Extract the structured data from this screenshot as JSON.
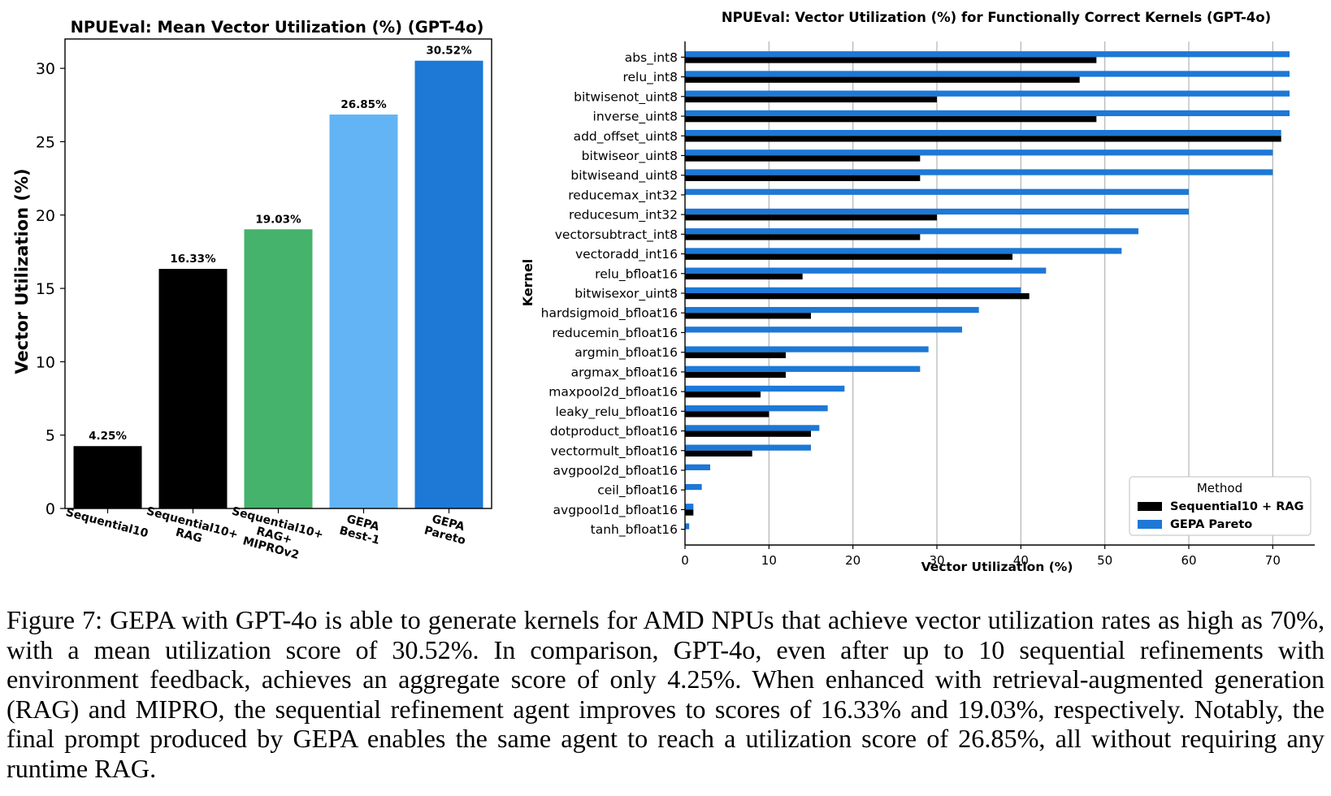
{
  "chart_data": [
    {
      "type": "bar",
      "title": "NPUEval: Mean Vector Utilization (%) (GPT-4o)",
      "xlabel": "",
      "ylabel": "Vector Utilization (%)",
      "ylim": [
        0,
        32
      ],
      "yticks": [
        0,
        5,
        10,
        15,
        20,
        25,
        30
      ],
      "grid": false,
      "categories": [
        [
          "Sequential10"
        ],
        [
          "Sequential10+",
          "RAG"
        ],
        [
          "Sequential10+",
          "RAG+",
          "MIPROv2"
        ],
        [
          "GEPA",
          "Best-1"
        ],
        [
          "GEPA",
          "Pareto"
        ]
      ],
      "values": [
        4.25,
        16.33,
        19.03,
        26.85,
        30.52
      ],
      "value_labels": [
        "4.25%",
        "16.33%",
        "19.03%",
        "26.85%",
        "30.52%"
      ],
      "colors": [
        "#000000",
        "#000000",
        "#45b36b",
        "#63b4f5",
        "#1d78d6"
      ]
    },
    {
      "type": "bar",
      "orientation": "horizontal",
      "title": "NPUEval: Vector Utilization (%) for Functionally Correct Kernels (GPT-4o)",
      "xlabel": "Vector Utilization (%)",
      "ylabel": "Kernel",
      "xlim": [
        0,
        75
      ],
      "xticks": [
        0,
        10,
        20,
        30,
        40,
        50,
        60,
        70
      ],
      "grid": "vertical",
      "legend": {
        "title": "Method",
        "placement": "lower-right"
      },
      "categories": [
        "abs_int8",
        "relu_int8",
        "bitwisenot_uint8",
        "inverse_uint8",
        "add_offset_uint8",
        "bitwiseor_uint8",
        "bitwiseand_uint8",
        "reducemax_int32",
        "reducesum_int32",
        "vectorsubtract_int8",
        "vectoradd_int16",
        "relu_bfloat16",
        "bitwisexor_uint8",
        "hardsigmoid_bfloat16",
        "reducemin_bfloat16",
        "argmin_bfloat16",
        "argmax_bfloat16",
        "maxpool2d_bfloat16",
        "leaky_relu_bfloat16",
        "dotproduct_bfloat16",
        "vectormult_bfloat16",
        "avgpool2d_bfloat16",
        "ceil_bfloat16",
        "avgpool1d_bfloat16",
        "tanh_bfloat16"
      ],
      "series": [
        {
          "name": "Sequential10 + RAG",
          "color": "#000000",
          "values": [
            49,
            47,
            30,
            49,
            71,
            28,
            28,
            0,
            30,
            28,
            39,
            14,
            41,
            15,
            0,
            12,
            12,
            9,
            10,
            15,
            8,
            0,
            0,
            1,
            0
          ]
        },
        {
          "name": "GEPA Pareto",
          "color": "#1d78d6",
          "values": [
            72,
            72,
            72,
            72,
            71,
            70,
            70,
            60,
            60,
            54,
            52,
            43,
            40,
            35,
            33,
            29,
            28,
            19,
            17,
            16,
            15,
            3,
            2,
            1,
            0.5
          ]
        }
      ]
    }
  ],
  "caption": "Figure 7: GEPA with GPT-4o is able to generate kernels for AMD NPUs that achieve vector utilization rates as high as 70%, with a mean utilization score of 30.52%. In comparison, GPT-4o, even after up to 10 sequential refinements with environment feedback, achieves an aggregate score of only 4.25%.  When enhanced with retrieval-augmented generation (RAG) and MIPRO, the sequential refinement agent improves to scores of 16.33% and 19.03%, respectively. Notably, the final prompt produced by GEPA enables the same agent to reach a utilization score of 26.85%, all without requiring any runtime RAG."
}
